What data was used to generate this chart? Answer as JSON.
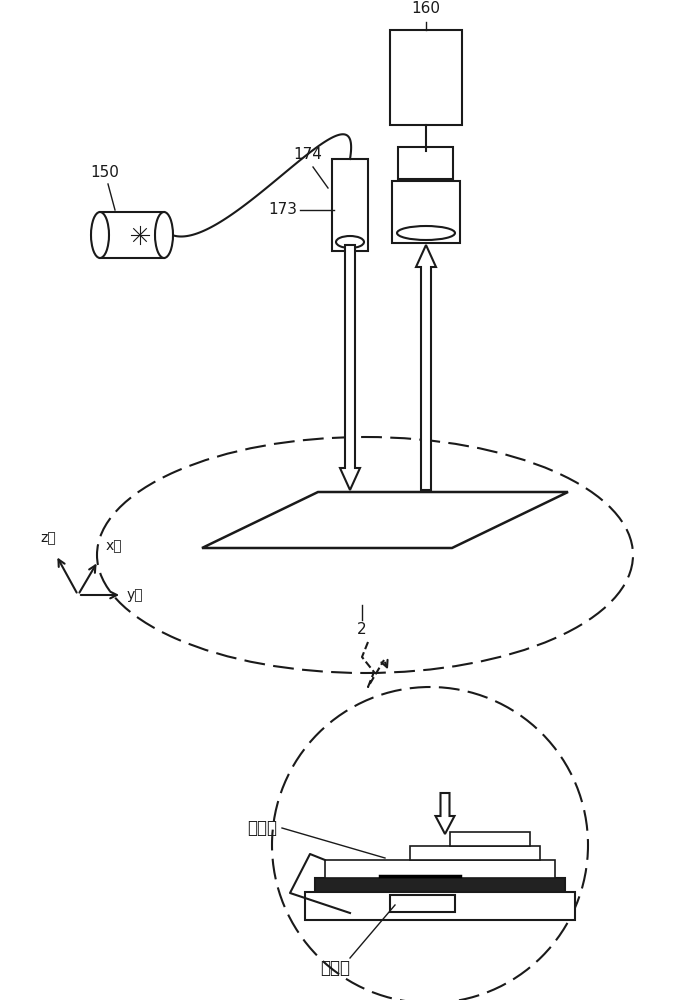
{
  "bg_color": "#ffffff",
  "line_color": "#1a1a1a",
  "label_150": "150",
  "label_160": "160",
  "label_173": "173",
  "label_174": "174",
  "label_2": "2",
  "label_face1": "第一面",
  "label_face2": "第二面",
  "label_z": "z轴",
  "label_x": "x轴",
  "label_y": "y轴"
}
